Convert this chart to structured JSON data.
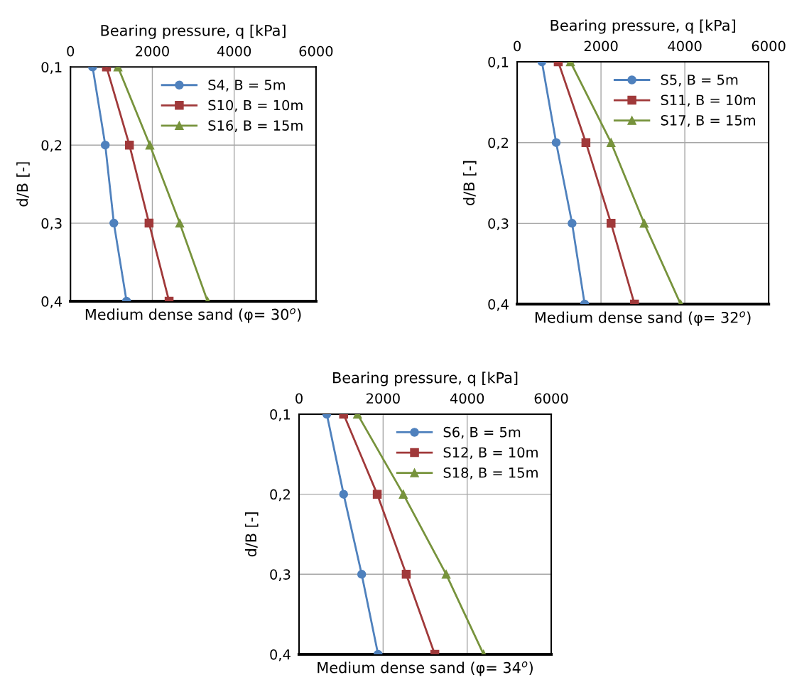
{
  "chart_data": [
    {
      "type": "line",
      "xlabel": "Bearing pressure, q [kPa]",
      "ylabel": "d/B [-]",
      "annotations": [
        "Medium dense sand (φ= 30$^{o}$)"
      ],
      "xlim": [
        0,
        6000
      ],
      "xticks": [
        0,
        2000,
        4000,
        6000
      ],
      "ylim": [
        0.4,
        0.1
      ],
      "yticks": [
        {
          "value": 0.1,
          "label": "0,1"
        },
        {
          "value": 0.2,
          "label": "0,2"
        },
        {
          "value": 0.3,
          "label": "0,3"
        },
        {
          "value": 0.4,
          "label": "0,4"
        }
      ],
      "grid": true,
      "legend": "top right",
      "line_style": "solid",
      "series": [
        {
          "name": "S4, B = 5m",
          "color": "#4f81bd",
          "marker": "circle",
          "x": [
            540,
            850,
            1060,
            1370
          ],
          "values": [
            0.1,
            0.2,
            0.3,
            0.4
          ]
        },
        {
          "name": "S10, B = 10m",
          "color": "#a0393a",
          "marker": "square",
          "x": [
            880,
            1440,
            1920,
            2410
          ],
          "values": [
            0.1,
            0.2,
            0.3,
            0.4
          ]
        },
        {
          "name": "S16, B = 15m",
          "color": "#77933c",
          "marker": "triangle",
          "x": [
            1160,
            1940,
            2670,
            3350
          ],
          "values": [
            0.1,
            0.2,
            0.3,
            0.4
          ]
        }
      ]
    },
    {
      "type": "line",
      "xlabel": "Bearing pressure, q [kPa]",
      "ylabel": "d/B [-]",
      "annotations": [
        "Medium dense sand (φ= 32$^{o}$)"
      ],
      "xlim": [
        0,
        6000
      ],
      "xticks": [
        0,
        2000,
        4000,
        6000
      ],
      "ylim": [
        0.4,
        0.1
      ],
      "yticks": [
        {
          "value": 0.1,
          "label": "0,1"
        },
        {
          "value": 0.2,
          "label": "0,2"
        },
        {
          "value": 0.3,
          "label": "0,3"
        },
        {
          "value": 0.4,
          "label": "0,4"
        }
      ],
      "grid": true,
      "legend": "top right",
      "line_style": "solid",
      "series": [
        {
          "name": "S5, B = 5m",
          "color": "#4f81bd",
          "marker": "circle",
          "x": [
            590,
            930,
            1310,
            1610
          ],
          "values": [
            0.1,
            0.2,
            0.3,
            0.4
          ]
        },
        {
          "name": "S11, B = 10m",
          "color": "#a0393a",
          "marker": "square",
          "x": [
            980,
            1640,
            2240,
            2800
          ],
          "values": [
            0.1,
            0.2,
            0.3,
            0.4
          ]
        },
        {
          "name": "S17, B = 15m",
          "color": "#77933c",
          "marker": "triangle",
          "x": [
            1270,
            2240,
            3030,
            3900
          ],
          "values": [
            0.1,
            0.2,
            0.3,
            0.4
          ]
        }
      ]
    },
    {
      "type": "line",
      "xlabel": "Bearing pressure, q [kPa]",
      "ylabel": "d/B [-]",
      "annotations": [
        "Medium dense sand (φ= 34$^{o}$)"
      ],
      "xlim": [
        0,
        6000
      ],
      "xticks": [
        0,
        2000,
        4000,
        6000
      ],
      "ylim": [
        0.4,
        0.1
      ],
      "yticks": [
        {
          "value": 0.1,
          "label": "0,1"
        },
        {
          "value": 0.2,
          "label": "0,2"
        },
        {
          "value": 0.3,
          "label": "0,3"
        },
        {
          "value": 0.4,
          "label": "0,4"
        }
      ],
      "grid": true,
      "legend": "top right",
      "line_style": "solid",
      "series": [
        {
          "name": "S6, B = 5m",
          "color": "#4f81bd",
          "marker": "circle",
          "x": [
            660,
            1060,
            1490,
            1880
          ],
          "values": [
            0.1,
            0.2,
            0.3,
            0.4
          ]
        },
        {
          "name": "S12, B = 10m",
          "color": "#a0393a",
          "marker": "square",
          "x": [
            1060,
            1860,
            2550,
            3230
          ],
          "values": [
            0.1,
            0.2,
            0.3,
            0.4
          ]
        },
        {
          "name": "S18, B = 15m",
          "color": "#77933c",
          "marker": "triangle",
          "x": [
            1390,
            2480,
            3500,
            4390
          ],
          "values": [
            0.1,
            0.2,
            0.3,
            0.4
          ]
        }
      ]
    }
  ]
}
